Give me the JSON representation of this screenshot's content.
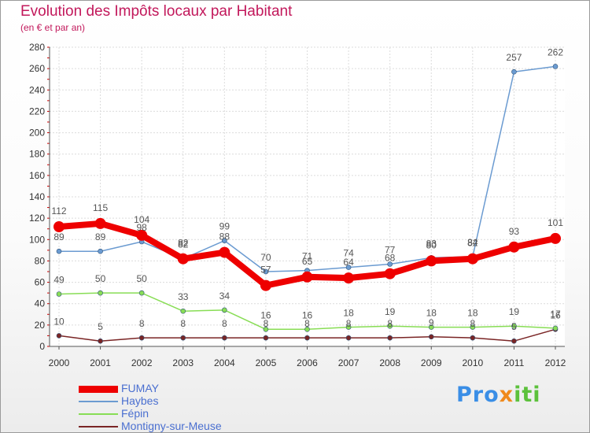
{
  "chart_data": {
    "type": "line",
    "title": "Evolution des Impôts locaux par Habitant",
    "subtitle": "(en € et par an)",
    "xlabel": "",
    "ylabel": "",
    "x": [
      "2000",
      "2001",
      "2002",
      "2003",
      "2004",
      "2005",
      "2006",
      "2007",
      "2008",
      "2009",
      "2010",
      "2011",
      "2012"
    ],
    "ylim": [
      0,
      280
    ],
    "yticks": [
      "0",
      "20",
      "40",
      "60",
      "80",
      "100",
      "120",
      "140",
      "160",
      "180",
      "200",
      "220",
      "240",
      "260",
      "280"
    ],
    "grid": true,
    "legend_position": "bottom-left",
    "series": [
      {
        "name": "FUMAY",
        "color": "#ee0000",
        "values": [
          112,
          115,
          104,
          82,
          88,
          57,
          65,
          64,
          68,
          80,
          82,
          93,
          101
        ],
        "labels": [
          "112",
          "115",
          "104",
          "82",
          "88",
          "57",
          "65",
          "64",
          "68",
          "80",
          "82",
          "93",
          "101"
        ]
      },
      {
        "name": "Haybes",
        "color": "#6b9bd1",
        "values": [
          89,
          89,
          98,
          82,
          99,
          70,
          71,
          74,
          77,
          83,
          84,
          257,
          262
        ],
        "labels": [
          "89",
          "89",
          "98",
          "82",
          "99",
          "70",
          "71",
          "74",
          "77",
          "83",
          "84",
          "257",
          "262"
        ]
      },
      {
        "name": "Fépin",
        "color": "#88dd55",
        "values": [
          49,
          50,
          50,
          33,
          34,
          16,
          16,
          18,
          19,
          18,
          18,
          19,
          17
        ],
        "labels": [
          "49",
          "50",
          "50",
          "33",
          "34",
          "16",
          "16",
          "18",
          "19",
          "18",
          "18",
          "19",
          "17"
        ]
      },
      {
        "name": "Montigny-sur-Meuse",
        "color": "#7a2525",
        "values": [
          10,
          5,
          8,
          8,
          8,
          8,
          8,
          8,
          8,
          9,
          8,
          5,
          16
        ],
        "labels": [
          "10",
          "5",
          "8",
          "8",
          "8",
          "8",
          "8",
          "8",
          "8",
          "9",
          "8",
          "5",
          "16"
        ]
      }
    ]
  },
  "logo": {
    "parts": [
      "Pro",
      "x",
      "iti"
    ],
    "colors": [
      "#3a8ee6",
      "#f08a1c",
      "#5cc13c"
    ]
  }
}
